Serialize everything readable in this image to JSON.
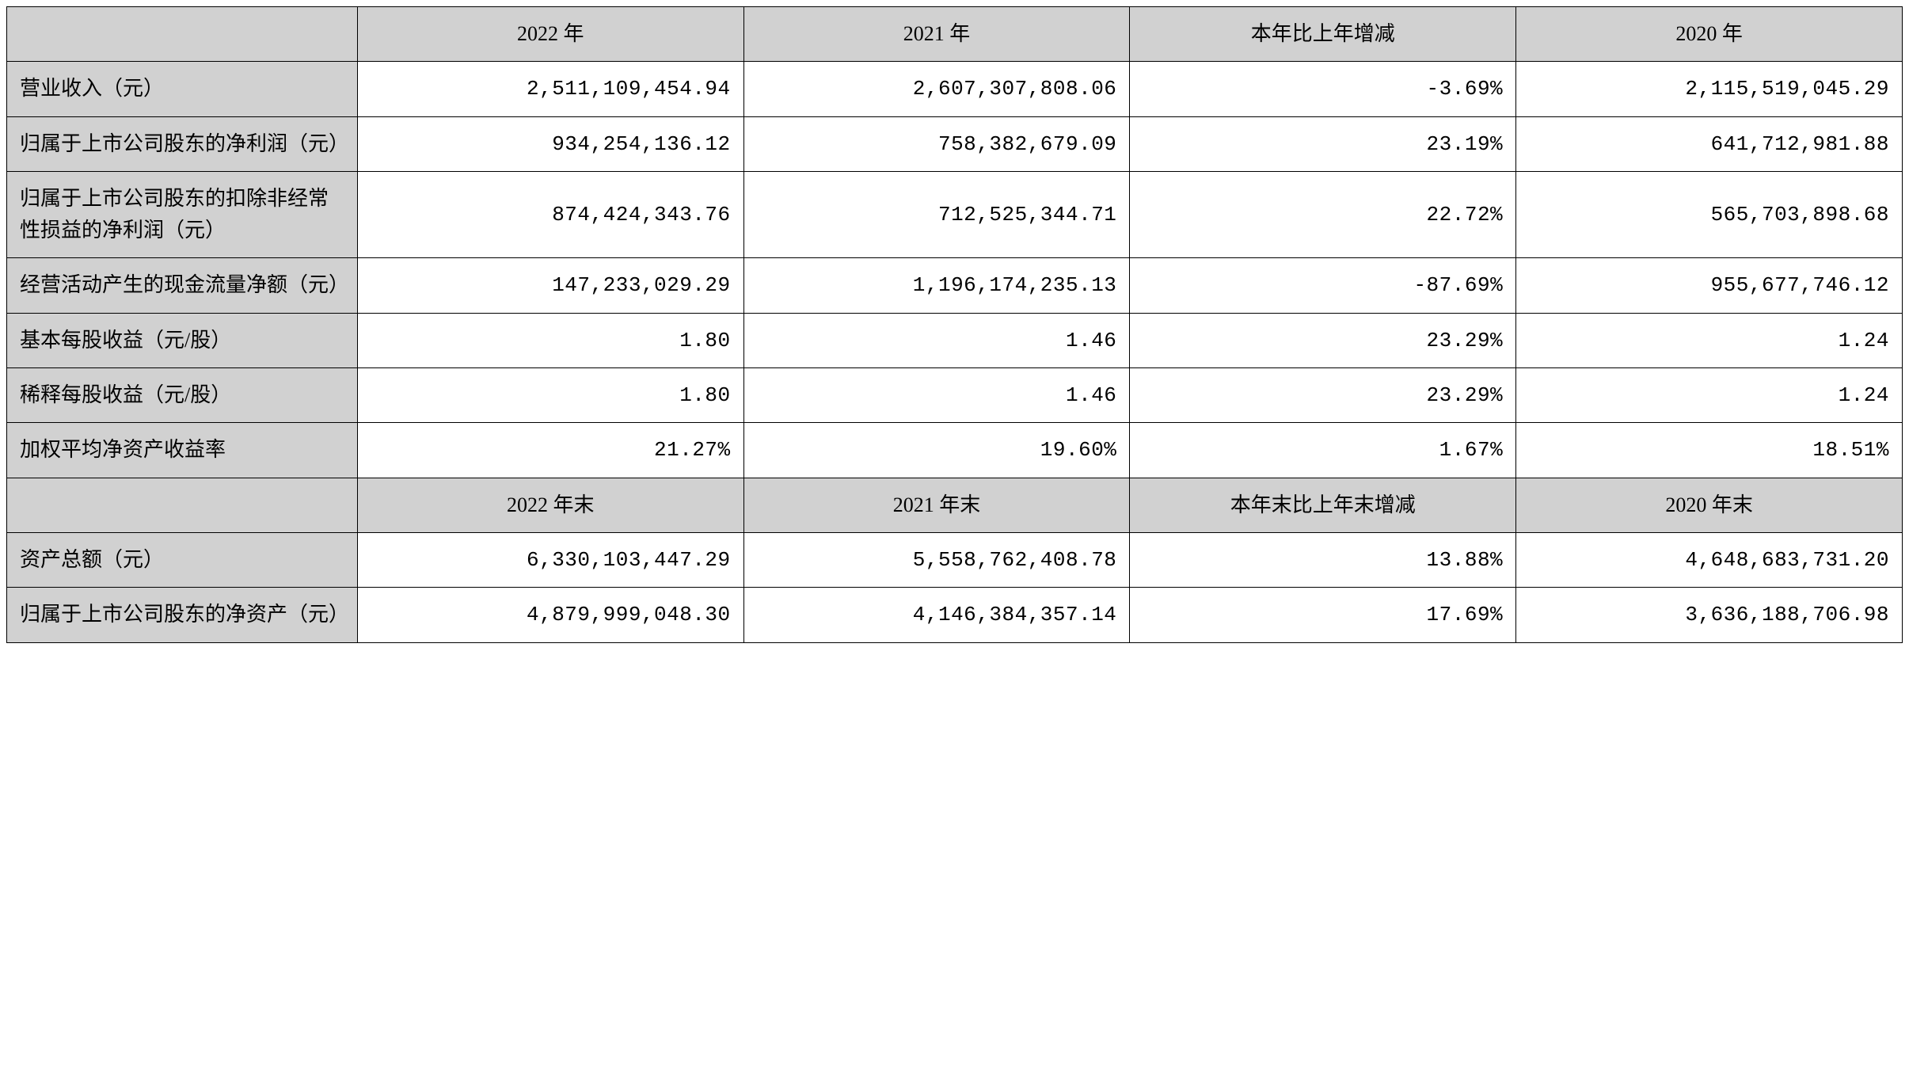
{
  "table": {
    "type": "table",
    "background_color": "#ffffff",
    "header_bg": "#d1d1d1",
    "label_bg": "#d1d1d1",
    "border_color": "#000000",
    "font_family": "SimSun",
    "font_size_pt": 20,
    "column_widths": [
      "18.5%",
      "20.375%",
      "20.375%",
      "20.375%",
      "20.375%"
    ],
    "header1": {
      "blank": "",
      "c1": "2022 年",
      "c2": "2021 年",
      "c3": "本年比上年增减",
      "c4": "2020 年"
    },
    "rows1": [
      {
        "label": "营业收入（元）",
        "v1": "2,511,109,454.94",
        "v2": "2,607,307,808.06",
        "v3": "-3.69%",
        "v4": "2,115,519,045.29"
      },
      {
        "label": "归属于上市公司股东的净利润（元）",
        "v1": "934,254,136.12",
        "v2": "758,382,679.09",
        "v3": "23.19%",
        "v4": "641,712,981.88"
      },
      {
        "label": "归属于上市公司股东的扣除非经常性损益的净利润（元）",
        "v1": "874,424,343.76",
        "v2": "712,525,344.71",
        "v3": "22.72%",
        "v4": "565,703,898.68"
      },
      {
        "label": "经营活动产生的现金流量净额（元）",
        "v1": "147,233,029.29",
        "v2": "1,196,174,235.13",
        "v3": "-87.69%",
        "v4": "955,677,746.12"
      },
      {
        "label": "基本每股收益（元/股）",
        "v1": "1.80",
        "v2": "1.46",
        "v3": "23.29%",
        "v4": "1.24"
      },
      {
        "label": "稀释每股收益（元/股）",
        "v1": "1.80",
        "v2": "1.46",
        "v3": "23.29%",
        "v4": "1.24"
      },
      {
        "label": "加权平均净资产收益率",
        "v1": "21.27%",
        "v2": "19.60%",
        "v3": "1.67%",
        "v4": "18.51%"
      }
    ],
    "header2": {
      "blank": "",
      "c1": "2022 年末",
      "c2": "2021 年末",
      "c3": "本年末比上年末增减",
      "c4": "2020 年末"
    },
    "rows2": [
      {
        "label": "资产总额（元）",
        "v1": "6,330,103,447.29",
        "v2": "5,558,762,408.78",
        "v3": "13.88%",
        "v4": "4,648,683,731.20"
      },
      {
        "label": "归属于上市公司股东的净资产（元）",
        "v1": "4,879,999,048.30",
        "v2": "4,146,384,357.14",
        "v3": "17.69%",
        "v4": "3,636,188,706.98"
      }
    ]
  }
}
